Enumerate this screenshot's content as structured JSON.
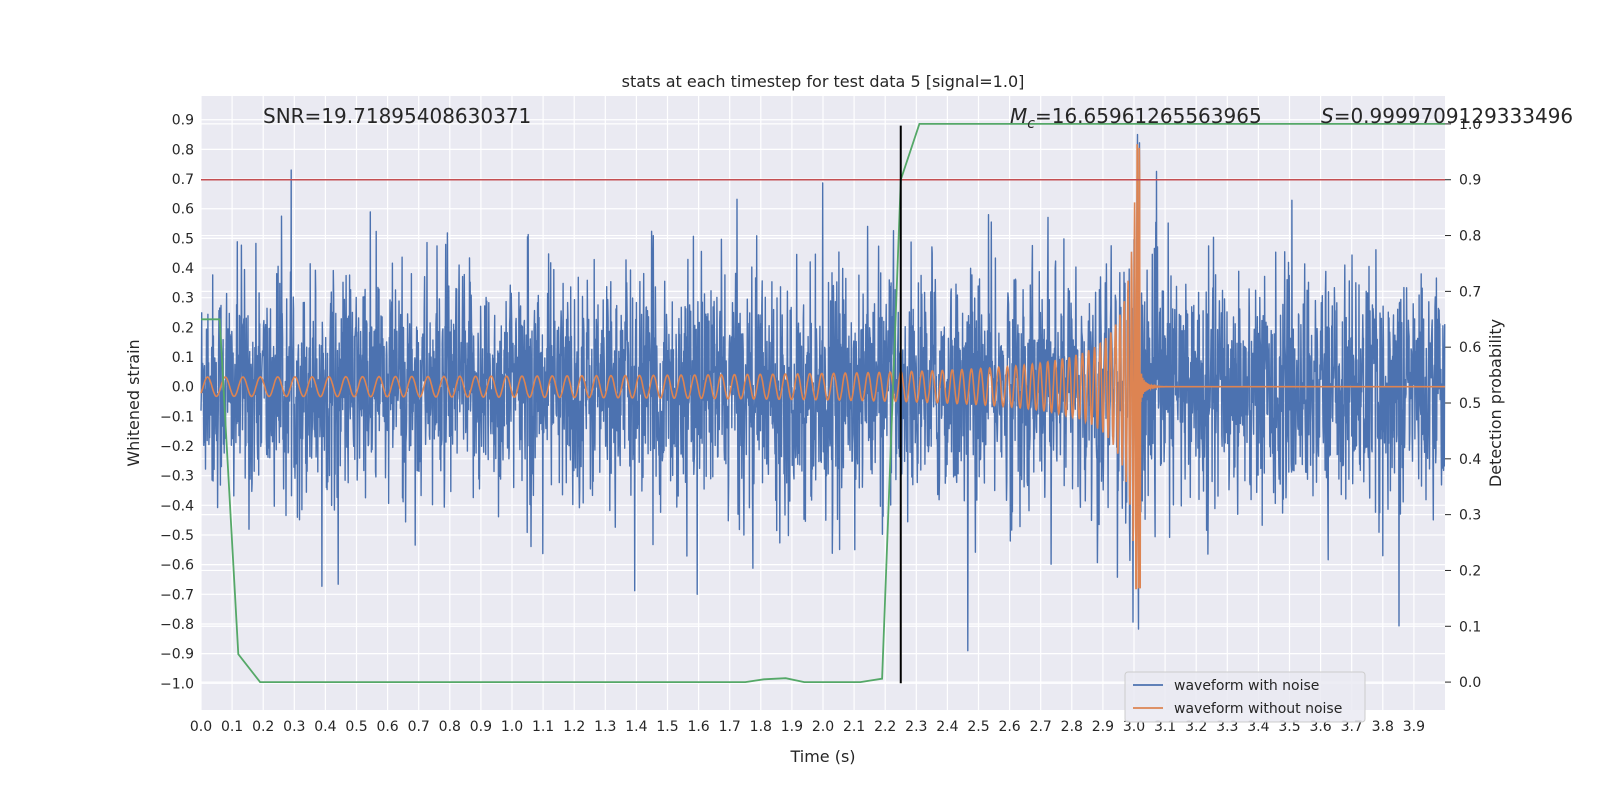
{
  "chart_data": {
    "type": "line",
    "title": "stats at each timestep for test data 5 [signal=1.0]",
    "xlabel": "Time (s)",
    "ylabel": "Whitened strain",
    "ylabel_right": "Detection probability",
    "xlim": [
      0.0,
      4.0
    ],
    "ylim": [
      -1.09,
      0.98
    ],
    "ylim_right": [
      -0.05,
      1.05
    ],
    "x_ticks": [
      "0.0",
      "0.1",
      "0.2",
      "0.3",
      "0.4",
      "0.5",
      "0.6",
      "0.7",
      "0.8",
      "0.9",
      "1.0",
      "1.1",
      "1.2",
      "1.3",
      "1.4",
      "1.5",
      "1.6",
      "1.7",
      "1.8",
      "1.9",
      "2.0",
      "2.1",
      "2.2",
      "2.3",
      "2.4",
      "2.5",
      "2.6",
      "2.7",
      "2.8",
      "2.9",
      "3.0",
      "3.1",
      "3.2",
      "3.3",
      "3.4",
      "3.5",
      "3.6",
      "3.7",
      "3.8",
      "3.9"
    ],
    "y_ticks": [
      "0.9",
      "0.8",
      "0.7",
      "0.6",
      "0.5",
      "0.4",
      "0.3",
      "0.2",
      "0.1",
      "0.0",
      "−0.1",
      "−0.2",
      "−0.3",
      "−0.4",
      "−0.5",
      "−0.6",
      "−0.7",
      "−0.8",
      "−0.9",
      "−1.0"
    ],
    "y_right_ticks": [
      "1.0",
      "0.9",
      "0.8",
      "0.7",
      "0.6",
      "0.5",
      "0.4",
      "0.3",
      "0.2",
      "0.1",
      "0.0"
    ],
    "annotations": {
      "snr": "SNR=19.71895408630371",
      "mc_symbol": "M",
      "mc_sub": "c",
      "mc_value": "=16.65961265563965",
      "s_symbol": "S",
      "s_value": "=0.9999709129333496"
    },
    "threshold": {
      "value": 0.9,
      "axis": "right",
      "color": "#c44e52"
    },
    "event_marker": {
      "x": 2.25,
      "y_from": -1.0,
      "y_to": 0.88
    },
    "probability_series": {
      "name": "Detection probability",
      "color": "#55a868",
      "x": [
        0.0,
        0.06,
        0.12,
        0.19,
        0.25,
        1.0,
        1.75,
        1.81,
        1.88,
        1.94,
        2.0,
        2.12,
        2.19,
        2.25,
        2.31,
        2.5,
        3.0,
        4.0
      ],
      "y": [
        0.65,
        0.65,
        0.05,
        0.0,
        0.0,
        0.0,
        0.0,
        0.005,
        0.007,
        0.0,
        0.0,
        0.0,
        0.006,
        0.9,
        1.0,
        1.0,
        1.0,
        1.0
      ]
    },
    "series": [
      {
        "name": "waveform with noise",
        "color": "#4c72b0",
        "noise_std": 0.19,
        "spike_range": [
          -1.0,
          0.85
        ]
      },
      {
        "name": "waveform without noise",
        "color": "#dd8452",
        "merger_time": 3.02,
        "peak_amplitude": 0.88,
        "trough_amplitude": -0.68,
        "early_amplitude": 0.025
      }
    ],
    "legend": {
      "placement": "lower-right",
      "entries": [
        "waveform with noise",
        "waveform without noise"
      ]
    },
    "grid": true
  }
}
